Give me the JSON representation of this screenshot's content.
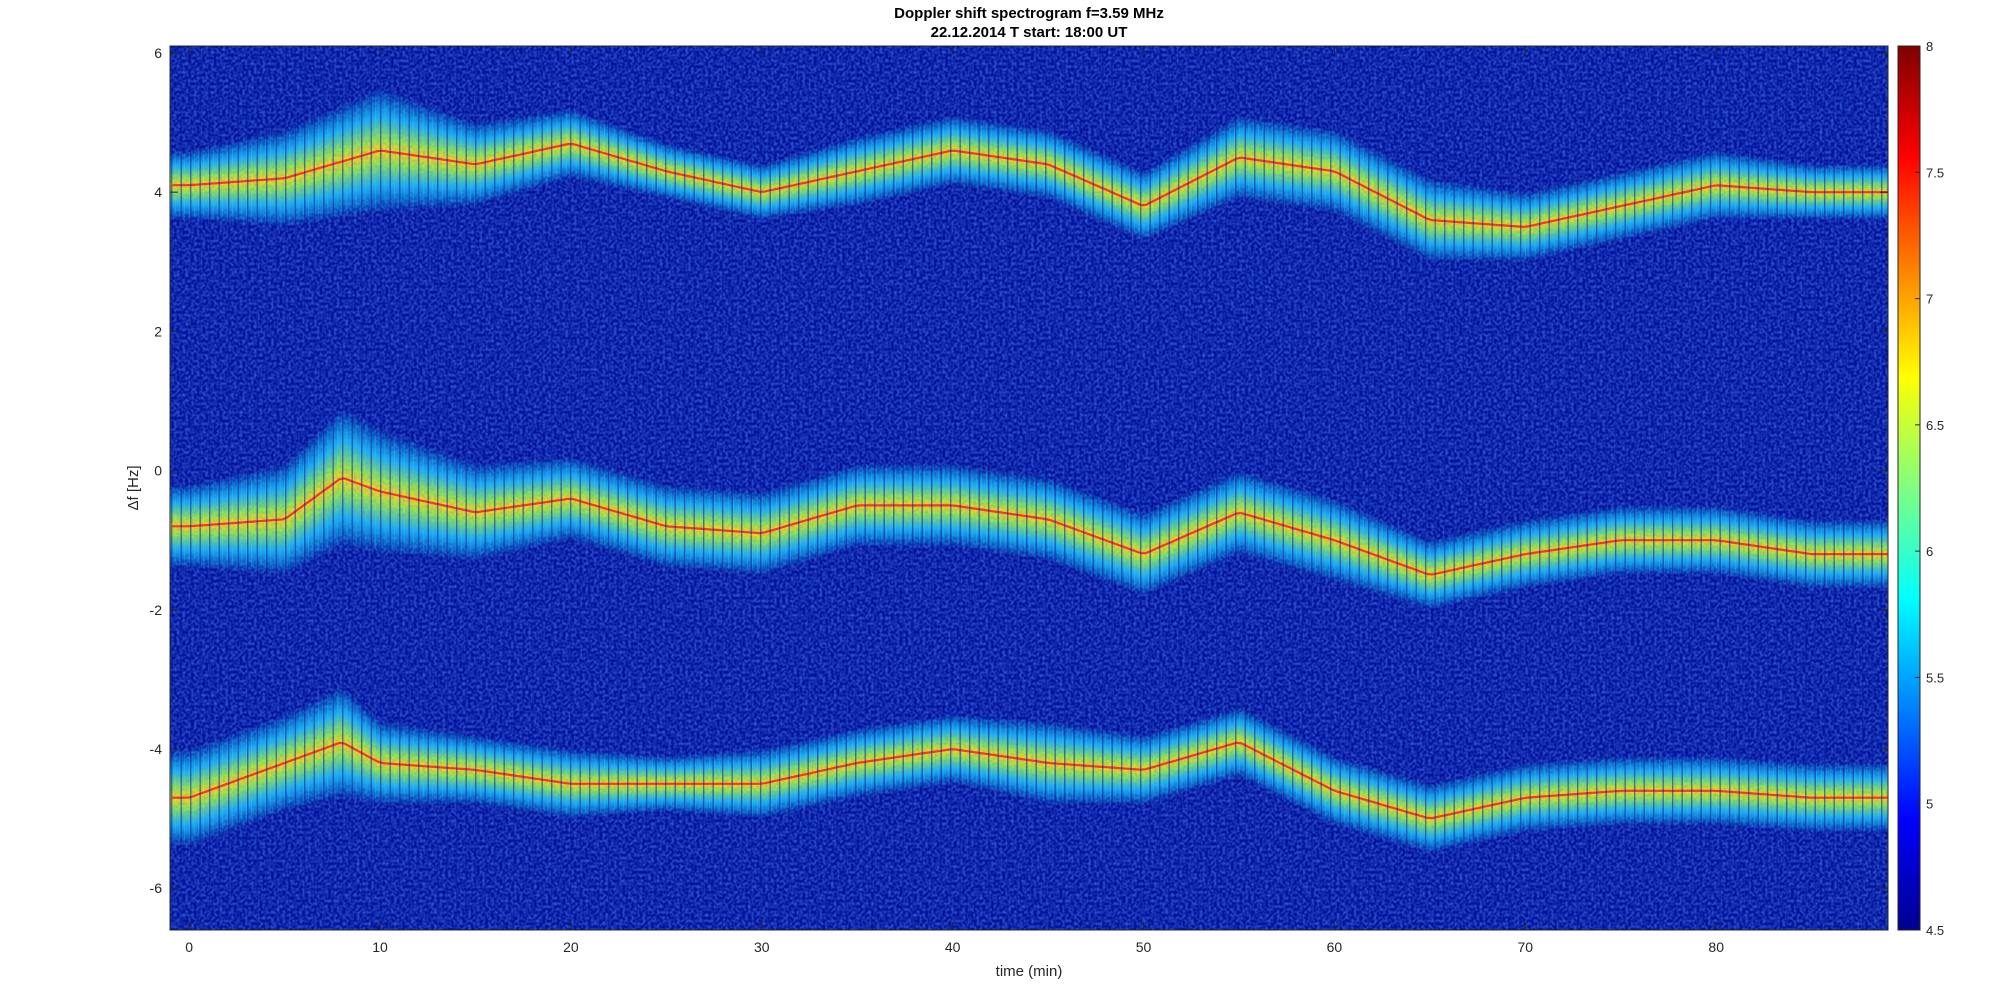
{
  "chart_data": {
    "type": "heatmap",
    "title": "Doppler shift spectrogram f=3.59 MHz",
    "subtitle": "22.12.2014   T start: 18:00 UT",
    "xlabel": "time (min)",
    "ylabel": "Δf [Hz]",
    "xlim": [
      -1,
      89
    ],
    "ylim": [
      -6.6,
      6.1
    ],
    "x_ticks": [
      0,
      10,
      20,
      30,
      40,
      50,
      60,
      70,
      80
    ],
    "y_ticks": [
      -6,
      -4,
      -2,
      0,
      2,
      4,
      6
    ],
    "colorbar": {
      "colormap": "jet",
      "clim": [
        4.5,
        8
      ],
      "ticks": [
        4.5,
        5,
        5.5,
        6,
        6.5,
        7,
        7.5,
        8
      ]
    },
    "series": [
      {
        "x": [
          0,
          5,
          10,
          15,
          20,
          25,
          30,
          35,
          40,
          45,
          50,
          55,
          60,
          65,
          70,
          75,
          80,
          85,
          89
        ],
        "y": [
          4.1,
          4.2,
          4.6,
          4.4,
          4.7,
          4.3,
          4.0,
          4.3,
          4.6,
          4.4,
          3.8,
          4.5,
          4.3,
          3.6,
          3.5,
          3.8,
          4.1,
          4.0,
          4.0
        ],
        "band_halfwidth": [
          0.5,
          0.7,
          0.9,
          0.6,
          0.5,
          0.4,
          0.4,
          0.5,
          0.5,
          0.5,
          0.5,
          0.6,
          0.6,
          0.6,
          0.5,
          0.5,
          0.5,
          0.4,
          0.4
        ]
      },
      {
        "x": [
          0,
          5,
          8,
          10,
          15,
          20,
          25,
          30,
          35,
          40,
          45,
          50,
          55,
          60,
          65,
          70,
          75,
          80,
          85,
          89
        ],
        "y": [
          -0.8,
          -0.7,
          -0.1,
          -0.3,
          -0.6,
          -0.4,
          -0.8,
          -0.9,
          -0.5,
          -0.5,
          -0.7,
          -1.2,
          -0.6,
          -1.0,
          -1.5,
          -1.2,
          -1.0,
          -1.0,
          -1.2,
          -1.2
        ],
        "band_halfwidth": [
          0.6,
          0.8,
          1.0,
          0.9,
          0.7,
          0.6,
          0.6,
          0.6,
          0.6,
          0.6,
          0.6,
          0.6,
          0.6,
          0.6,
          0.5,
          0.5,
          0.5,
          0.5,
          0.5,
          0.5
        ]
      },
      {
        "x": [
          0,
          5,
          8,
          10,
          15,
          20,
          25,
          30,
          35,
          40,
          45,
          50,
          55,
          60,
          65,
          70,
          75,
          80,
          85,
          89
        ],
        "y": [
          -4.7,
          -4.2,
          -3.9,
          -4.2,
          -4.3,
          -4.5,
          -4.5,
          -4.5,
          -4.2,
          -4.0,
          -4.2,
          -4.3,
          -3.9,
          -4.6,
          -5.0,
          -4.7,
          -4.6,
          -4.6,
          -4.7,
          -4.7
        ],
        "band_halfwidth": [
          0.7,
          0.7,
          0.8,
          0.6,
          0.5,
          0.5,
          0.4,
          0.5,
          0.5,
          0.5,
          0.6,
          0.5,
          0.5,
          0.5,
          0.5,
          0.5,
          0.5,
          0.5,
          0.5,
          0.5
        ]
      }
    ]
  }
}
